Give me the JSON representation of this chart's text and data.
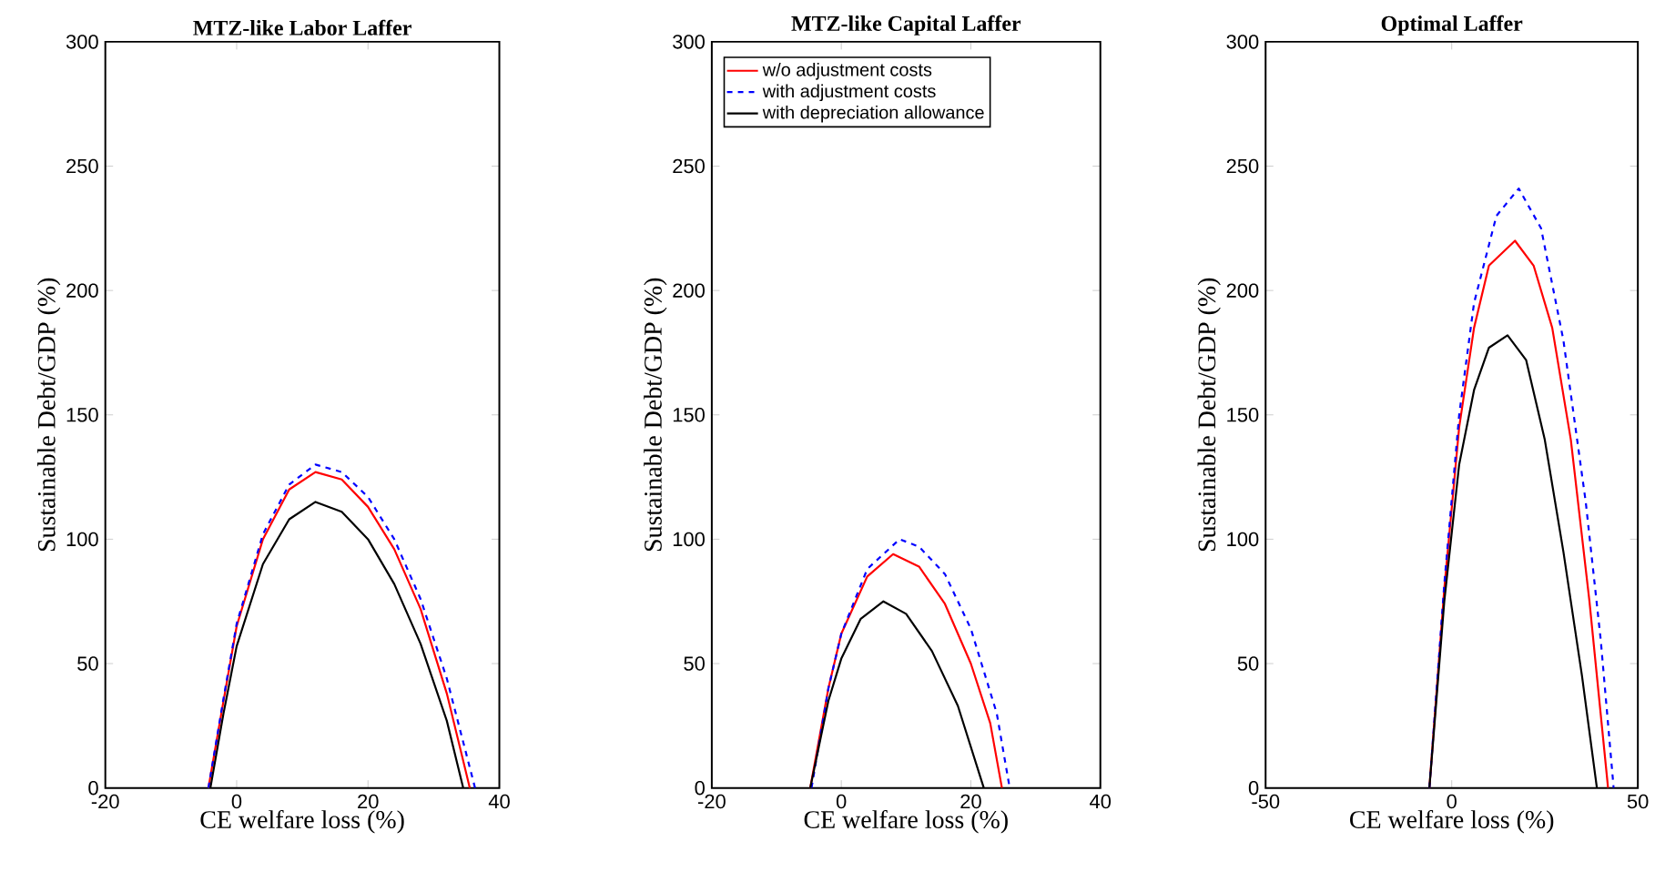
{
  "chart_data": [
    {
      "type": "line",
      "title": "MTZ-like Labor Laffer",
      "xlabel": "CE welfare loss (%)",
      "ylabel": "Sustainable Debt/GDP (%)",
      "xlim": [
        -20,
        40
      ],
      "ylim": [
        0,
        300
      ],
      "xticks": [
        -20,
        0,
        20,
        40
      ],
      "yticks": [
        0,
        50,
        100,
        150,
        200,
        250,
        300
      ],
      "grid": false,
      "legend": false,
      "series": [
        {
          "color": "#ff0000",
          "line_style": "solid",
          "x": [
            -4.3,
            -2,
            0,
            4,
            8,
            12,
            16,
            20,
            24,
            28,
            32,
            35.5
          ],
          "values": [
            0,
            35,
            65,
            100,
            120,
            127,
            124,
            113,
            96,
            72,
            38,
            0
          ]
        },
        {
          "color": "#0000ff",
          "line_style": "dashed",
          "x": [
            -4.3,
            -2,
            0,
            4,
            8,
            12,
            16,
            20,
            24,
            28,
            32,
            36.3
          ],
          "values": [
            0,
            36,
            66,
            102,
            122,
            130,
            127,
            117,
            100,
            76,
            44,
            0
          ]
        },
        {
          "color": "#000000",
          "line_style": "solid",
          "x": [
            -4,
            -2,
            0,
            4,
            8,
            12,
            16,
            20,
            24,
            28,
            32,
            34.5
          ],
          "values": [
            0,
            30,
            57,
            90,
            108,
            115,
            111,
            100,
            82,
            58,
            27,
            0
          ]
        }
      ]
    },
    {
      "type": "line",
      "title": "MTZ-like Capital Laffer",
      "xlabel": "CE welfare loss (%)",
      "ylabel": "Sustainable Debt/GDP (%)",
      "xlim": [
        -20,
        40
      ],
      "ylim": [
        0,
        300
      ],
      "xticks": [
        -20,
        0,
        20,
        40
      ],
      "yticks": [
        0,
        50,
        100,
        150,
        200,
        250,
        300
      ],
      "grid": false,
      "legend": "top left",
      "series": [
        {
          "name": "w/o adjustment costs",
          "color": "#ff0000",
          "line_style": "solid",
          "x": [
            -4.8,
            -2,
            0,
            4,
            8,
            12,
            16,
            20,
            23,
            24.8
          ],
          "values": [
            0,
            40,
            62,
            85,
            94,
            89,
            74,
            50,
            26,
            0
          ]
        },
        {
          "name": "with adjustment costs",
          "color": "#0000ff",
          "line_style": "dashed",
          "x": [
            -4.6,
            -2,
            0,
            4,
            9,
            12,
            16,
            20,
            24,
            26
          ],
          "values": [
            0,
            40,
            62,
            88,
            100,
            97,
            86,
            64,
            30,
            0
          ]
        },
        {
          "name": "with depreciation allowance",
          "color": "#000000",
          "line_style": "solid",
          "x": [
            -4.8,
            -2,
            0,
            3,
            6.5,
            10,
            14,
            18,
            22
          ],
          "values": [
            0,
            35,
            52,
            68,
            75,
            70,
            55,
            33,
            0
          ]
        }
      ]
    },
    {
      "type": "line",
      "title": "Optimal Laffer",
      "xlabel": "CE welfare loss (%)",
      "ylabel": "Sustainable Debt/GDP (%)",
      "xlim": [
        -50,
        50
      ],
      "ylim": [
        0,
        300
      ],
      "xticks": [
        -50,
        0,
        50
      ],
      "yticks": [
        0,
        50,
        100,
        150,
        200,
        250,
        300
      ],
      "grid": false,
      "legend": false,
      "series": [
        {
          "color": "#ff0000",
          "line_style": "solid",
          "x": [
            -6,
            -2,
            2,
            6,
            10,
            17,
            22,
            27,
            32,
            37,
            42
          ],
          "values": [
            0,
            80,
            145,
            185,
            210,
            220,
            210,
            185,
            140,
            75,
            0
          ]
        },
        {
          "color": "#0000ff",
          "line_style": "dashed",
          "x": [
            -6,
            -2,
            2,
            6,
            12,
            18,
            24,
            30,
            36,
            40,
            43.5
          ],
          "values": [
            0,
            82,
            150,
            195,
            230,
            241,
            225,
            180,
            115,
            60,
            0
          ]
        },
        {
          "color": "#000000",
          "line_style": "solid",
          "x": [
            -6,
            -2,
            2,
            6,
            10,
            15,
            20,
            25,
            30,
            35,
            39
          ],
          "values": [
            0,
            75,
            130,
            160,
            177,
            182,
            172,
            140,
            95,
            45,
            0
          ]
        }
      ]
    }
  ]
}
